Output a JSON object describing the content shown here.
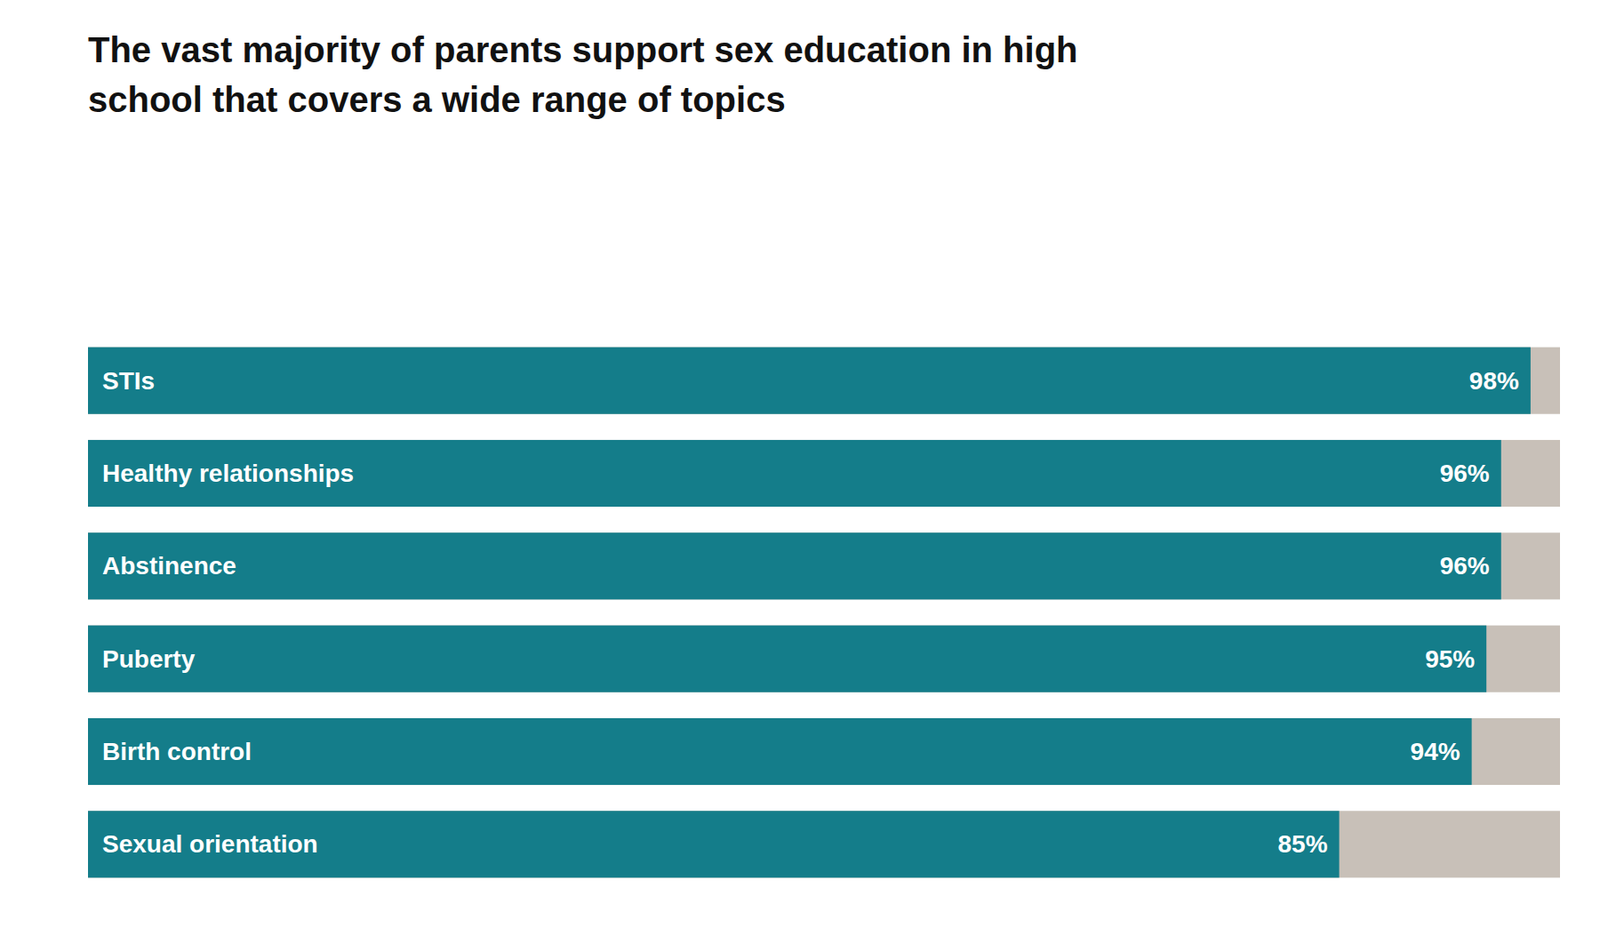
{
  "chart_data": {
    "type": "bar",
    "orientation": "horizontal",
    "title": "The vast majority of parents support sex education in high\nschool that covers a wide range of topics",
    "categories": [
      "STIs",
      "Healthy relationships",
      "Abstinence",
      "Puberty",
      "Birth control",
      "Sexual orientation"
    ],
    "values": [
      98,
      96,
      96,
      95,
      94,
      85
    ],
    "value_labels": [
      "98%",
      "96%",
      "96%",
      "95%",
      "94%",
      "85%"
    ],
    "color": "#147d8a",
    "xlim": [
      0,
      100
    ],
    "data_labels": true,
    "tick_labels": false,
    "grid": false
  }
}
